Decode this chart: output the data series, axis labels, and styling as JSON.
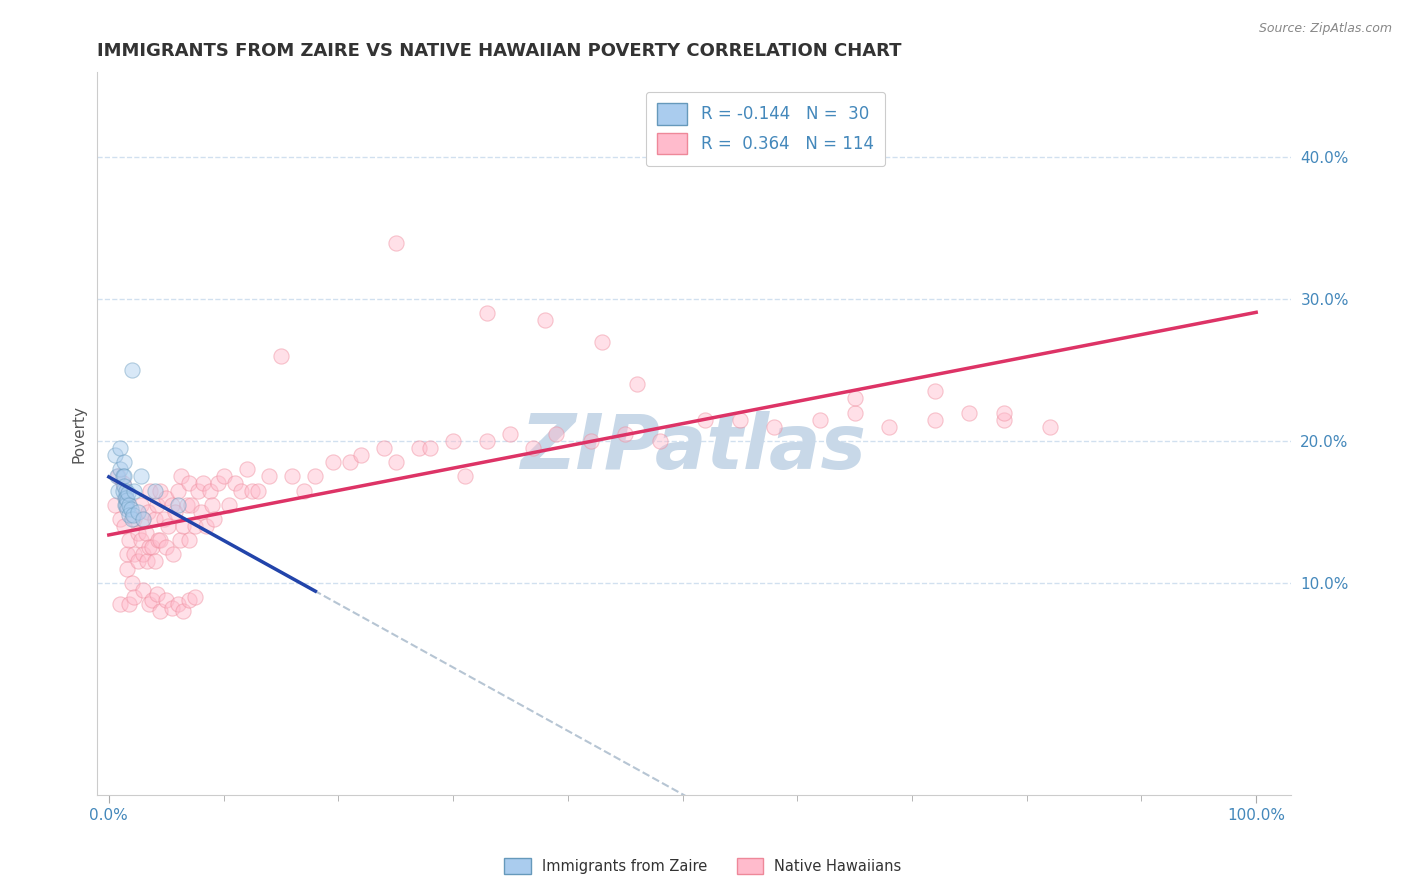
{
  "title": "IMMIGRANTS FROM ZAIRE VS NATIVE HAWAIIAN POVERTY CORRELATION CHART",
  "source": "Source: ZipAtlas.com",
  "ylabel": "Poverty",
  "ytick_vals": [
    0.1,
    0.2,
    0.3,
    0.4
  ],
  "ytick_labels": [
    "10.0%",
    "20.0%",
    "30.0%",
    "40.0%"
  ],
  "xtick_vals": [
    0.0,
    1.0
  ],
  "xtick_labels": [
    "0.0%",
    "100.0%"
  ],
  "xlim": [
    -0.01,
    1.03
  ],
  "ylim": [
    -0.05,
    0.46
  ],
  "blue_color": "#99BBDD",
  "pink_color": "#FFAACC",
  "blue_face_color": "#AACCEE",
  "pink_face_color": "#FFBBCC",
  "blue_edge_color": "#6699BB",
  "pink_edge_color": "#EE8899",
  "blue_line_color": "#2244AA",
  "pink_line_color": "#DD3366",
  "dashed_line_color": "#AABBCC",
  "tick_color": "#4488BB",
  "ylabel_color": "#555555",
  "title_color": "#333333",
  "watermark": "ZIPatlas",
  "watermark_color": "#C8D8E8",
  "grid_color": "#CCDDEE",
  "background_color": "#FFFFFF",
  "title_fontsize": 13,
  "tick_fontsize": 11,
  "legend_fontsize": 12,
  "marker_size": 120,
  "marker_alpha": 0.45,
  "blue_scatter_x": [
    0.005,
    0.007,
    0.008,
    0.01,
    0.01,
    0.012,
    0.012,
    0.013,
    0.013,
    0.013,
    0.014,
    0.014,
    0.015,
    0.015,
    0.015,
    0.016,
    0.016,
    0.017,
    0.018,
    0.018,
    0.019,
    0.02,
    0.021,
    0.022,
    0.025,
    0.028,
    0.03,
    0.04,
    0.06,
    0.02
  ],
  "blue_scatter_y": [
    0.19,
    0.175,
    0.165,
    0.195,
    0.18,
    0.175,
    0.165,
    0.185,
    0.175,
    0.168,
    0.16,
    0.155,
    0.165,
    0.16,
    0.155,
    0.158,
    0.152,
    0.163,
    0.155,
    0.148,
    0.152,
    0.145,
    0.148,
    0.165,
    0.15,
    0.175,
    0.145,
    0.165,
    0.155,
    0.25
  ],
  "pink_scatter_x": [
    0.005,
    0.008,
    0.01,
    0.012,
    0.013,
    0.015,
    0.016,
    0.016,
    0.018,
    0.02,
    0.022,
    0.022,
    0.025,
    0.025,
    0.028,
    0.028,
    0.03,
    0.03,
    0.032,
    0.033,
    0.034,
    0.035,
    0.036,
    0.038,
    0.04,
    0.04,
    0.042,
    0.043,
    0.045,
    0.045,
    0.048,
    0.05,
    0.05,
    0.052,
    0.055,
    0.056,
    0.058,
    0.06,
    0.062,
    0.063,
    0.065,
    0.068,
    0.07,
    0.07,
    0.072,
    0.075,
    0.078,
    0.08,
    0.082,
    0.085,
    0.088,
    0.09,
    0.092,
    0.095,
    0.1,
    0.105,
    0.11,
    0.115,
    0.12,
    0.125,
    0.13,
    0.14,
    0.15,
    0.16,
    0.17,
    0.18,
    0.195,
    0.21,
    0.22,
    0.24,
    0.25,
    0.27,
    0.28,
    0.3,
    0.31,
    0.33,
    0.35,
    0.37,
    0.39,
    0.42,
    0.45,
    0.48,
    0.52,
    0.55,
    0.58,
    0.62,
    0.65,
    0.68,
    0.72,
    0.75,
    0.78,
    0.82,
    0.25,
    0.33,
    0.38,
    0.43,
    0.46,
    0.65,
    0.72,
    0.78,
    0.01,
    0.018,
    0.022,
    0.03,
    0.035,
    0.038,
    0.042,
    0.045,
    0.05,
    0.055,
    0.06,
    0.065,
    0.07,
    0.075
  ],
  "pink_scatter_y": [
    0.155,
    0.175,
    0.145,
    0.17,
    0.14,
    0.16,
    0.12,
    0.11,
    0.13,
    0.1,
    0.145,
    0.12,
    0.135,
    0.115,
    0.155,
    0.13,
    0.145,
    0.12,
    0.135,
    0.115,
    0.15,
    0.125,
    0.165,
    0.125,
    0.145,
    0.115,
    0.155,
    0.13,
    0.165,
    0.13,
    0.145,
    0.16,
    0.125,
    0.14,
    0.155,
    0.12,
    0.15,
    0.165,
    0.13,
    0.175,
    0.14,
    0.155,
    0.17,
    0.13,
    0.155,
    0.14,
    0.165,
    0.15,
    0.17,
    0.14,
    0.165,
    0.155,
    0.145,
    0.17,
    0.175,
    0.155,
    0.17,
    0.165,
    0.18,
    0.165,
    0.165,
    0.175,
    0.26,
    0.175,
    0.165,
    0.175,
    0.185,
    0.185,
    0.19,
    0.195,
    0.185,
    0.195,
    0.195,
    0.2,
    0.175,
    0.2,
    0.205,
    0.195,
    0.205,
    0.2,
    0.205,
    0.2,
    0.215,
    0.215,
    0.21,
    0.215,
    0.22,
    0.21,
    0.215,
    0.22,
    0.215,
    0.21,
    0.34,
    0.29,
    0.285,
    0.27,
    0.24,
    0.23,
    0.235,
    0.22,
    0.085,
    0.085,
    0.09,
    0.095,
    0.085,
    0.088,
    0.092,
    0.08,
    0.088,
    0.082,
    0.085,
    0.08,
    0.088,
    0.09
  ]
}
